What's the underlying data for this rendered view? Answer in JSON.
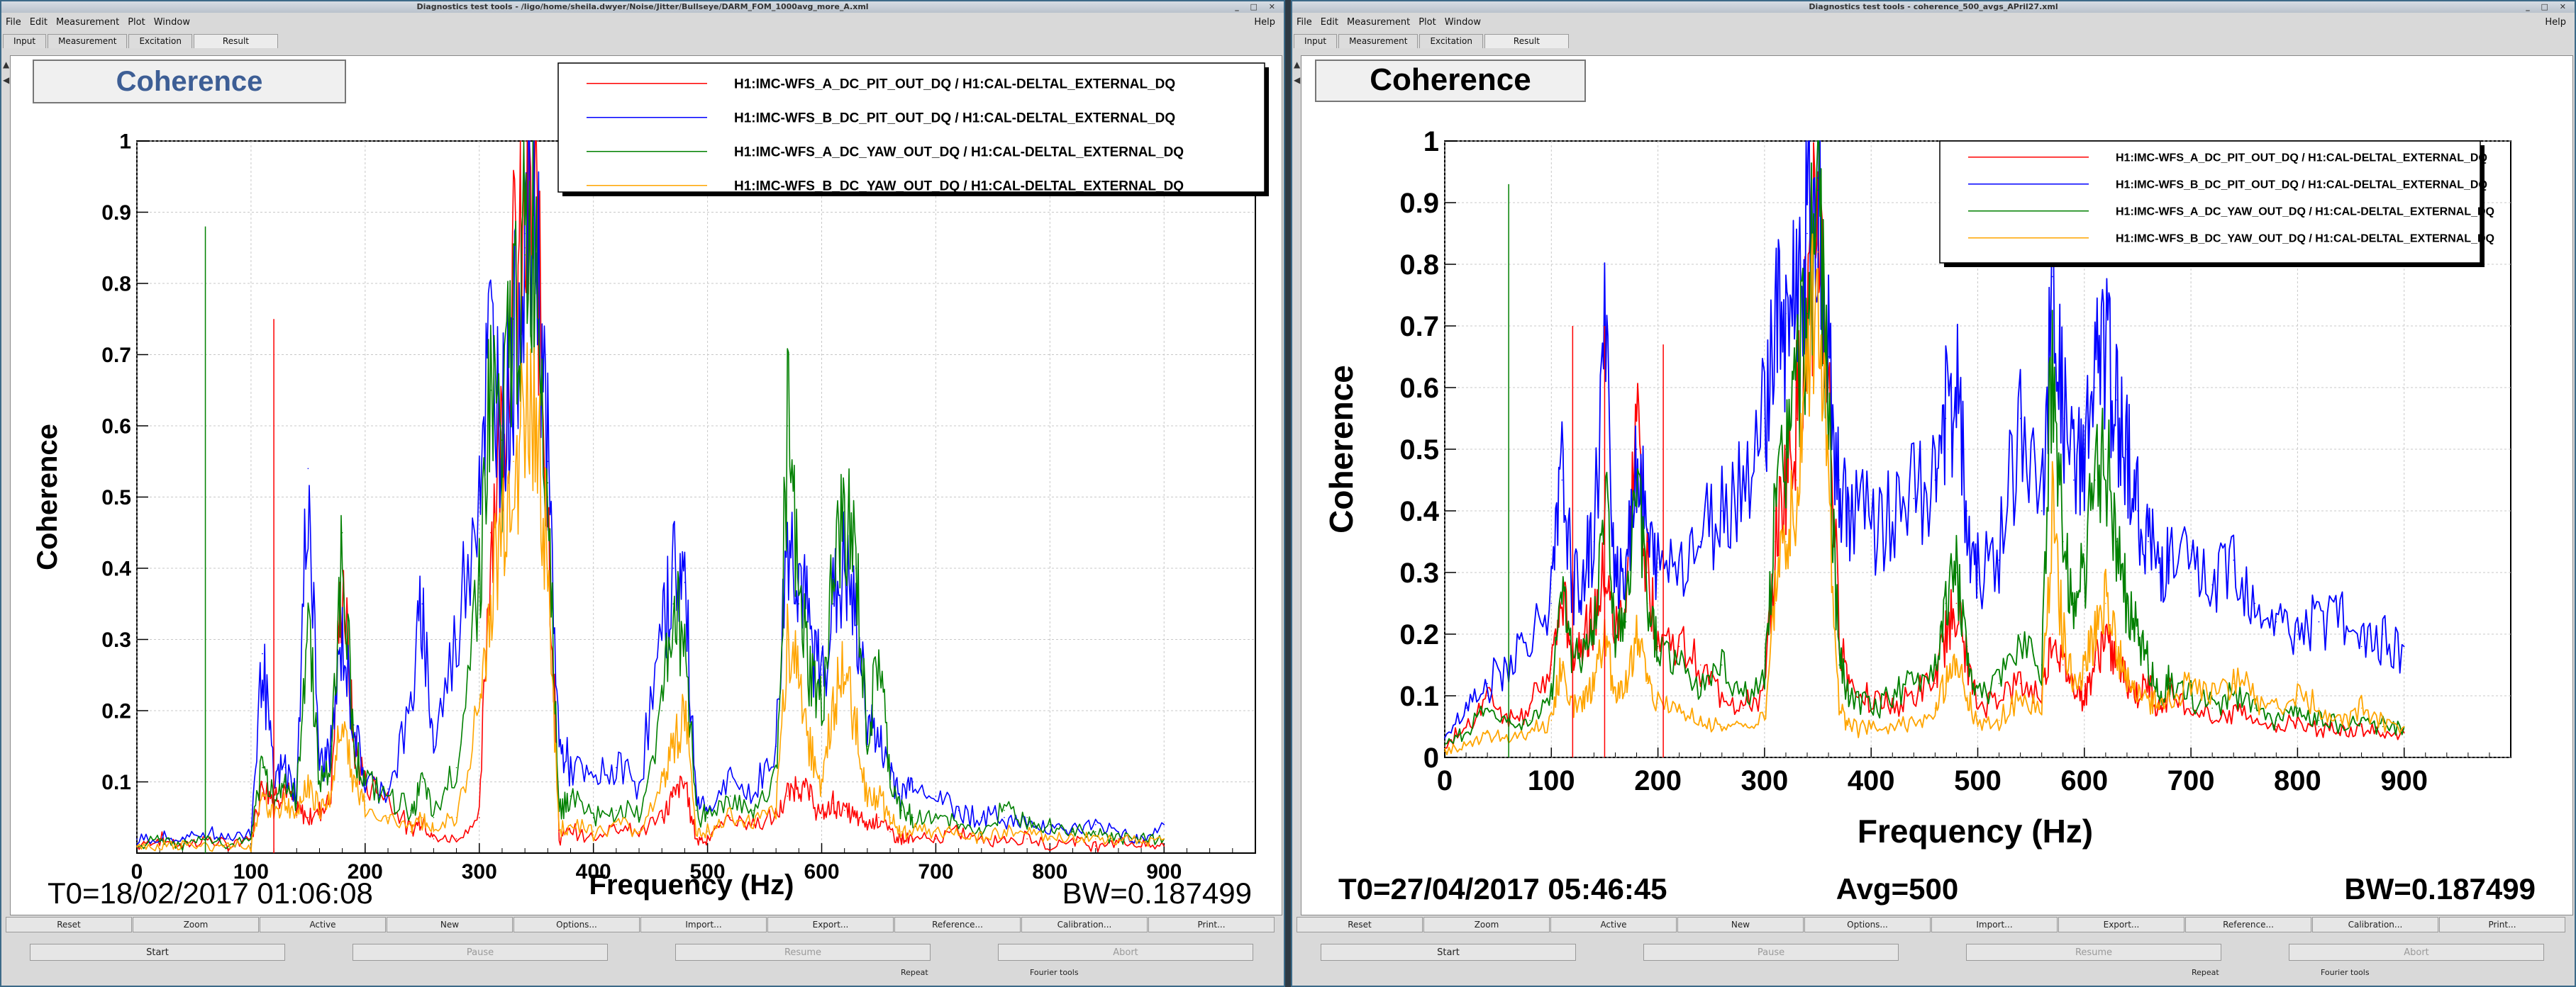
{
  "windows": [
    {
      "title": "Diagnostics test tools - /ligo/home/sheila.dwyer/Noise/Jitter/Bullseye/DARM_FOM_1000avg_more_A.xml",
      "menu": [
        "File",
        "Edit",
        "Measurement",
        "Plot",
        "Window"
      ],
      "help": "Help",
      "tabs": [
        "Input",
        "Measurement",
        "Excitation",
        "Result"
      ],
      "active_tab": "Result",
      "buttons": [
        "Reset",
        "Zoom",
        "Active",
        "New",
        "Options...",
        "Import...",
        "Export...",
        "Reference...",
        "Calibration...",
        "Print..."
      ],
      "controls": [
        "Start",
        "Pause",
        "Resume",
        "Abort"
      ],
      "status": [
        "Repeat",
        "Fourier tools"
      ],
      "plot_title": "Coherence",
      "footer_left": "T0=18/02/2017 01:06:08",
      "footer_mid": "",
      "footer_right": "BW=0.187499"
    },
    {
      "title": "Diagnostics test tools - coherence_500_avgs_APril27.xml",
      "menu": [
        "File",
        "Edit",
        "Measurement",
        "Plot",
        "Window"
      ],
      "help": "Help",
      "tabs": [
        "Input",
        "Measurement",
        "Excitation",
        "Result"
      ],
      "active_tab": "Result",
      "buttons": [
        "Reset",
        "Zoom",
        "Active",
        "New",
        "Options...",
        "Import...",
        "Export...",
        "Reference...",
        "Calibration...",
        "Print..."
      ],
      "controls": [
        "Start",
        "Pause",
        "Resume",
        "Abort"
      ],
      "status": [
        "Repeat",
        "Fourier tools"
      ],
      "plot_title": "Coherence",
      "footer_left": "T0=27/04/2017 05:46:45",
      "footer_mid": "Avg=500",
      "footer_right": "BW=0.187499"
    }
  ],
  "colors": {
    "red": "#ff0000",
    "blue": "#0000ff",
    "green": "#008000",
    "orange": "#ffa500"
  },
  "chart_data": [
    {
      "type": "line",
      "title": "Coherence",
      "xlabel": "Frequency (Hz)",
      "ylabel": "Coherence",
      "xlim": [
        0,
        980
      ],
      "ylim": [
        0,
        1
      ],
      "grid": true,
      "legend_position": "top-right",
      "xticks": [
        0,
        100,
        200,
        300,
        400,
        500,
        600,
        700,
        800,
        900
      ],
      "yticks": [
        0.1,
        0.2,
        0.3,
        0.4,
        0.5,
        0.6,
        0.7,
        0.8,
        0.9,
        1
      ],
      "x": [
        0,
        20,
        40,
        60,
        80,
        100,
        110,
        120,
        130,
        140,
        150,
        160,
        170,
        180,
        190,
        200,
        220,
        240,
        250,
        260,
        280,
        300,
        310,
        320,
        330,
        340,
        350,
        360,
        370,
        380,
        400,
        420,
        440,
        460,
        470,
        480,
        490,
        500,
        520,
        540,
        560,
        570,
        580,
        590,
        600,
        610,
        620,
        630,
        640,
        650,
        660,
        670,
        680,
        700,
        720,
        740,
        760,
        780,
        800,
        820,
        840,
        860,
        880,
        900
      ],
      "series": [
        {
          "name": "H1:IMC-WFS_A_DC_PIT_OUT_DQ / H1:CAL-DELTAL_EXTERNAL_DQ",
          "color": "#ff0000",
          "values": [
            0.01,
            0.02,
            0.01,
            0.02,
            0.01,
            0.02,
            0.1,
            0.08,
            0.09,
            0.06,
            0.05,
            0.06,
            0.08,
            0.4,
            0.15,
            0.1,
            0.08,
            0.03,
            0.05,
            0.02,
            0.02,
            0.05,
            0.45,
            0.6,
            0.8,
            0.85,
            0.88,
            0.5,
            0.02,
            0.03,
            0.02,
            0.04,
            0.03,
            0.05,
            0.08,
            0.1,
            0.02,
            0.02,
            0.05,
            0.04,
            0.05,
            0.08,
            0.1,
            0.08,
            0.05,
            0.07,
            0.06,
            0.05,
            0.04,
            0.05,
            0.03,
            0.02,
            0.02,
            0.02,
            0.03,
            0.02,
            0.02,
            0.02,
            0.01,
            0.02,
            0.01,
            0.02,
            0.01,
            0.01
          ]
        },
        {
          "name": "H1:IMC-WFS_B_DC_PIT_OUT_DQ / H1:CAL-DELTAL_EXTERNAL_DQ",
          "color": "#0000ff",
          "values": [
            0.02,
            0.02,
            0.02,
            0.03,
            0.02,
            0.03,
            0.28,
            0.1,
            0.12,
            0.08,
            0.54,
            0.12,
            0.15,
            0.3,
            0.18,
            0.1,
            0.09,
            0.2,
            0.35,
            0.15,
            0.3,
            0.55,
            0.72,
            0.6,
            0.7,
            0.87,
            0.88,
            0.55,
            0.15,
            0.12,
            0.1,
            0.12,
            0.1,
            0.3,
            0.4,
            0.38,
            0.08,
            0.06,
            0.1,
            0.08,
            0.15,
            0.45,
            0.4,
            0.3,
            0.25,
            0.35,
            0.4,
            0.32,
            0.2,
            0.15,
            0.12,
            0.08,
            0.1,
            0.08,
            0.06,
            0.05,
            0.05,
            0.04,
            0.04,
            0.03,
            0.04,
            0.03,
            0.02,
            0.04
          ]
        },
        {
          "name": "H1:IMC-WFS_A_DC_YAW_OUT_DQ / H1:CAL-DELTAL_EXTERNAL_DQ",
          "color": "#008000",
          "values": [
            0.01,
            0.02,
            0.01,
            0.02,
            0.01,
            0.02,
            0.12,
            0.08,
            0.1,
            0.07,
            0.35,
            0.1,
            0.12,
            0.45,
            0.15,
            0.1,
            0.08,
            0.06,
            0.1,
            0.05,
            0.12,
            0.4,
            0.65,
            0.58,
            0.75,
            0.84,
            0.86,
            0.52,
            0.06,
            0.08,
            0.05,
            0.06,
            0.05,
            0.2,
            0.35,
            0.3,
            0.06,
            0.05,
            0.08,
            0.06,
            0.1,
            0.6,
            0.35,
            0.25,
            0.2,
            0.38,
            0.48,
            0.4,
            0.15,
            0.28,
            0.1,
            0.06,
            0.05,
            0.05,
            0.04,
            0.03,
            0.06,
            0.05,
            0.04,
            0.03,
            0.03,
            0.02,
            0.02,
            0.02
          ]
        },
        {
          "name": "H1:IMC-WFS_B_DC_YAW_OUT_DQ / H1:CAL-DELTAL_EXTERNAL_DQ",
          "color": "#ffa500",
          "values": [
            0.01,
            0.01,
            0.01,
            0.01,
            0.01,
            0.01,
            0.08,
            0.06,
            0.07,
            0.05,
            0.1,
            0.06,
            0.08,
            0.2,
            0.1,
            0.06,
            0.05,
            0.04,
            0.05,
            0.03,
            0.05,
            0.2,
            0.35,
            0.45,
            0.55,
            0.6,
            0.62,
            0.4,
            0.03,
            0.04,
            0.03,
            0.04,
            0.03,
            0.1,
            0.15,
            0.2,
            0.03,
            0.03,
            0.05,
            0.04,
            0.06,
            0.3,
            0.25,
            0.15,
            0.1,
            0.2,
            0.25,
            0.18,
            0.08,
            0.08,
            0.05,
            0.03,
            0.03,
            0.03,
            0.03,
            0.02,
            0.03,
            0.03,
            0.02,
            0.02,
            0.02,
            0.02,
            0.02,
            0.02
          ]
        }
      ],
      "spikes": [
        {
          "series": 2,
          "x": 60,
          "y": 0.88
        },
        {
          "series": 0,
          "x": 120,
          "y": 0.75
        }
      ]
    },
    {
      "type": "line",
      "title": "Coherence",
      "xlabel": "Frequency (Hz)",
      "ylabel": "Coherence",
      "xlim": [
        0,
        1000
      ],
      "ylim": [
        0,
        1
      ],
      "grid": true,
      "legend_position": "top-right",
      "xticks": [
        0,
        100,
        200,
        300,
        400,
        500,
        600,
        700,
        800,
        900
      ],
      "yticks": [
        0,
        0.1,
        0.2,
        0.3,
        0.4,
        0.5,
        0.6,
        0.7,
        0.8,
        0.9,
        1
      ],
      "x": [
        0,
        20,
        40,
        60,
        80,
        100,
        110,
        120,
        130,
        140,
        150,
        160,
        170,
        180,
        190,
        200,
        220,
        240,
        260,
        280,
        300,
        310,
        320,
        330,
        340,
        350,
        360,
        370,
        380,
        400,
        420,
        440,
        460,
        470,
        480,
        490,
        500,
        520,
        540,
        560,
        570,
        580,
        590,
        600,
        610,
        620,
        630,
        640,
        650,
        660,
        670,
        680,
        700,
        720,
        740,
        760,
        780,
        800,
        820,
        840,
        860,
        880,
        900
      ],
      "series": [
        {
          "name": "H1:IMC-WFS_A_DC_PIT_OUT_DQ / H1:CAL-DELTAL_EXTERNAL_DQ",
          "color": "#ff0000",
          "values": [
            0.02,
            0.05,
            0.1,
            0.06,
            0.08,
            0.15,
            0.25,
            0.18,
            0.2,
            0.22,
            0.3,
            0.2,
            0.25,
            0.55,
            0.3,
            0.2,
            0.18,
            0.15,
            0.1,
            0.08,
            0.1,
            0.35,
            0.45,
            0.55,
            0.7,
            0.9,
            0.6,
            0.2,
            0.12,
            0.1,
            0.08,
            0.1,
            0.12,
            0.2,
            0.25,
            0.15,
            0.08,
            0.1,
            0.12,
            0.1,
            0.2,
            0.15,
            0.12,
            0.1,
            0.15,
            0.2,
            0.15,
            0.12,
            0.1,
            0.12,
            0.08,
            0.1,
            0.08,
            0.06,
            0.08,
            0.06,
            0.05,
            0.06,
            0.05,
            0.04,
            0.05,
            0.04,
            0.04
          ]
        },
        {
          "name": "H1:IMC-WFS_B_DC_PIT_OUT_DQ / H1:CAL-DELTAL_EXTERNAL_DQ",
          "color": "#0000ff",
          "values": [
            0.03,
            0.08,
            0.12,
            0.15,
            0.2,
            0.25,
            0.45,
            0.28,
            0.3,
            0.35,
            0.68,
            0.3,
            0.32,
            0.5,
            0.35,
            0.3,
            0.32,
            0.35,
            0.4,
            0.45,
            0.55,
            0.7,
            0.72,
            0.75,
            0.85,
            0.94,
            0.65,
            0.45,
            0.4,
            0.38,
            0.4,
            0.42,
            0.45,
            0.55,
            0.6,
            0.4,
            0.3,
            0.32,
            0.55,
            0.4,
            0.78,
            0.55,
            0.45,
            0.5,
            0.6,
            0.65,
            0.58,
            0.5,
            0.4,
            0.35,
            0.3,
            0.32,
            0.3,
            0.28,
            0.32,
            0.25,
            0.22,
            0.2,
            0.22,
            0.25,
            0.18,
            0.2,
            0.18
          ]
        },
        {
          "name": "H1:IMC-WFS_A_DC_YAW_OUT_DQ / H1:CAL-DELTAL_EXTERNAL_DQ",
          "color": "#008000",
          "values": [
            0.02,
            0.04,
            0.08,
            0.05,
            0.06,
            0.1,
            0.3,
            0.15,
            0.18,
            0.2,
            0.45,
            0.2,
            0.22,
            0.45,
            0.25,
            0.18,
            0.15,
            0.12,
            0.15,
            0.1,
            0.12,
            0.4,
            0.5,
            0.6,
            0.72,
            0.92,
            0.55,
            0.15,
            0.1,
            0.08,
            0.1,
            0.12,
            0.15,
            0.25,
            0.3,
            0.18,
            0.1,
            0.12,
            0.2,
            0.15,
            0.68,
            0.35,
            0.25,
            0.3,
            0.45,
            0.5,
            0.35,
            0.25,
            0.2,
            0.15,
            0.1,
            0.12,
            0.1,
            0.08,
            0.1,
            0.08,
            0.06,
            0.08,
            0.06,
            0.05,
            0.06,
            0.05,
            0.05
          ]
        },
        {
          "name": "H1:IMC-WFS_B_DC_YAW_OUT_DQ / H1:CAL-DELTAL_EXTERNAL_DQ",
          "color": "#ffa500",
          "values": [
            0.01,
            0.02,
            0.04,
            0.03,
            0.04,
            0.06,
            0.15,
            0.08,
            0.1,
            0.12,
            0.2,
            0.1,
            0.12,
            0.2,
            0.12,
            0.1,
            0.08,
            0.06,
            0.05,
            0.05,
            0.06,
            0.25,
            0.35,
            0.45,
            0.6,
            0.82,
            0.4,
            0.08,
            0.05,
            0.05,
            0.05,
            0.06,
            0.08,
            0.12,
            0.15,
            0.1,
            0.05,
            0.06,
            0.1,
            0.08,
            0.4,
            0.2,
            0.12,
            0.15,
            0.2,
            0.25,
            0.18,
            0.12,
            0.1,
            0.1,
            0.08,
            0.1,
            0.12,
            0.1,
            0.12,
            0.1,
            0.08,
            0.1,
            0.08,
            0.06,
            0.08,
            0.06,
            0.05
          ]
        }
      ],
      "spikes": [
        {
          "series": 2,
          "x": 60,
          "y": 0.93
        },
        {
          "series": 0,
          "x": 120,
          "y": 0.7
        },
        {
          "series": 0,
          "x": 150,
          "y": 0.7
        },
        {
          "series": 0,
          "x": 205,
          "y": 0.67
        }
      ]
    }
  ]
}
